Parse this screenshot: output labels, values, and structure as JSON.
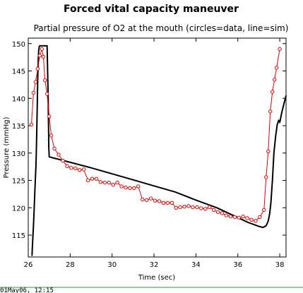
{
  "chart_data": {
    "type": "line",
    "title": "Forced vital capacity maneuver",
    "subtitle": "Partial pressure of O2 at the mouth (circles=data, line=sim)",
    "xlabel": "Time (sec)",
    "ylabel": "Pressure (mmHg)",
    "xlim": [
      26,
      38.3
    ],
    "ylim": [
      111,
      151
    ],
    "xticks": [
      26,
      28,
      30,
      32,
      34,
      36,
      38
    ],
    "yticks": [
      115,
      120,
      125,
      130,
      135,
      140,
      145,
      150
    ],
    "xtick_labels": [
      "26",
      "28",
      "30",
      "32",
      "34",
      "36",
      "38"
    ],
    "ytick_labels": [
      "115",
      "120",
      "125",
      "130",
      "135",
      "140",
      "145",
      "150"
    ],
    "grid": false,
    "colors": {
      "data": "#e00000",
      "sim": "#000000"
    },
    "series": [
      {
        "style": "line-with-circles",
        "color": "#e00000",
        "x": [
          26.15,
          26.25,
          26.35,
          26.45,
          26.55,
          26.65,
          26.72,
          26.8,
          26.9,
          27.0,
          27.1,
          27.25,
          27.45,
          27.65,
          27.85,
          28.05,
          28.25,
          28.45,
          28.65,
          28.85,
          29.05,
          29.25,
          29.45,
          29.65,
          29.85,
          30.05,
          30.25,
          30.45,
          30.65,
          30.85,
          31.05,
          31.25,
          31.45,
          31.65,
          31.85,
          32.05,
          32.25,
          32.45,
          32.65,
          32.85,
          33.05,
          33.25,
          33.45,
          33.65,
          33.85,
          34.05,
          34.25,
          34.45,
          34.65,
          34.85,
          35.05,
          35.25,
          35.45,
          35.65,
          35.85,
          36.05,
          36.25,
          36.45,
          36.65,
          36.85,
          37.05,
          37.25,
          37.35,
          37.45,
          37.55,
          37.65,
          37.75,
          37.85,
          38.0
        ],
        "y": [
          135.2,
          141.0,
          143.0,
          145.4,
          147.8,
          149.0,
          147.6,
          143.3,
          140.8,
          136.7,
          133.2,
          130.8,
          129.7,
          128.6,
          127.6,
          127.3,
          127.2,
          126.9,
          127.0,
          125.0,
          125.3,
          125.3,
          124.7,
          124.6,
          124.6,
          124.2,
          124.6,
          123.9,
          123.7,
          123.6,
          123.6,
          123.9,
          121.5,
          121.4,
          121.7,
          121.3,
          121.2,
          120.9,
          120.9,
          120.9,
          120.0,
          120.1,
          120.2,
          120.3,
          120.1,
          120.1,
          119.9,
          119.8,
          120.1,
          119.6,
          119.2,
          119.0,
          118.6,
          118.4,
          118.3,
          118.2,
          118.4,
          118.1,
          117.8,
          117.6,
          118.3,
          119.6,
          125.6,
          130.3,
          137.6,
          141.2,
          143.4,
          145.6,
          149.0
        ]
      },
      {
        "style": "line",
        "color": "#000000",
        "x": [
          26.18,
          26.2,
          26.24,
          26.28,
          26.32,
          26.37,
          26.4,
          26.43,
          26.45,
          26.48,
          26.5,
          26.53,
          26.56,
          26.6,
          26.65,
          26.9,
          26.95,
          26.98,
          27.0,
          27.3,
          28.0,
          29.0,
          30.0,
          31.0,
          32.0,
          33.0,
          34.0,
          35.0,
          36.0,
          36.5,
          37.0,
          37.2,
          37.35,
          37.45,
          37.52,
          37.58,
          37.65,
          37.72,
          37.8,
          37.88,
          37.95,
          38.0,
          38.1,
          38.2,
          38.3
        ],
        "y": [
          111.2,
          113.0,
          116.0,
          119.5,
          123.5,
          128.0,
          133.0,
          139.0,
          143.5,
          147.0,
          148.8,
          149.5,
          149.6,
          149.6,
          149.6,
          149.6,
          140.0,
          131.0,
          129.3,
          129.0,
          128.3,
          127.3,
          126.2,
          125.1,
          124.0,
          122.9,
          121.4,
          120.0,
          118.2,
          117.3,
          116.6,
          116.4,
          116.7,
          117.6,
          119.0,
          121.0,
          125.0,
          130.0,
          133.0,
          135.2,
          136.0,
          135.6,
          137.5,
          139.0,
          140.5
        ]
      }
    ]
  },
  "footer": {
    "timestamp": "01May06, 12:15"
  }
}
